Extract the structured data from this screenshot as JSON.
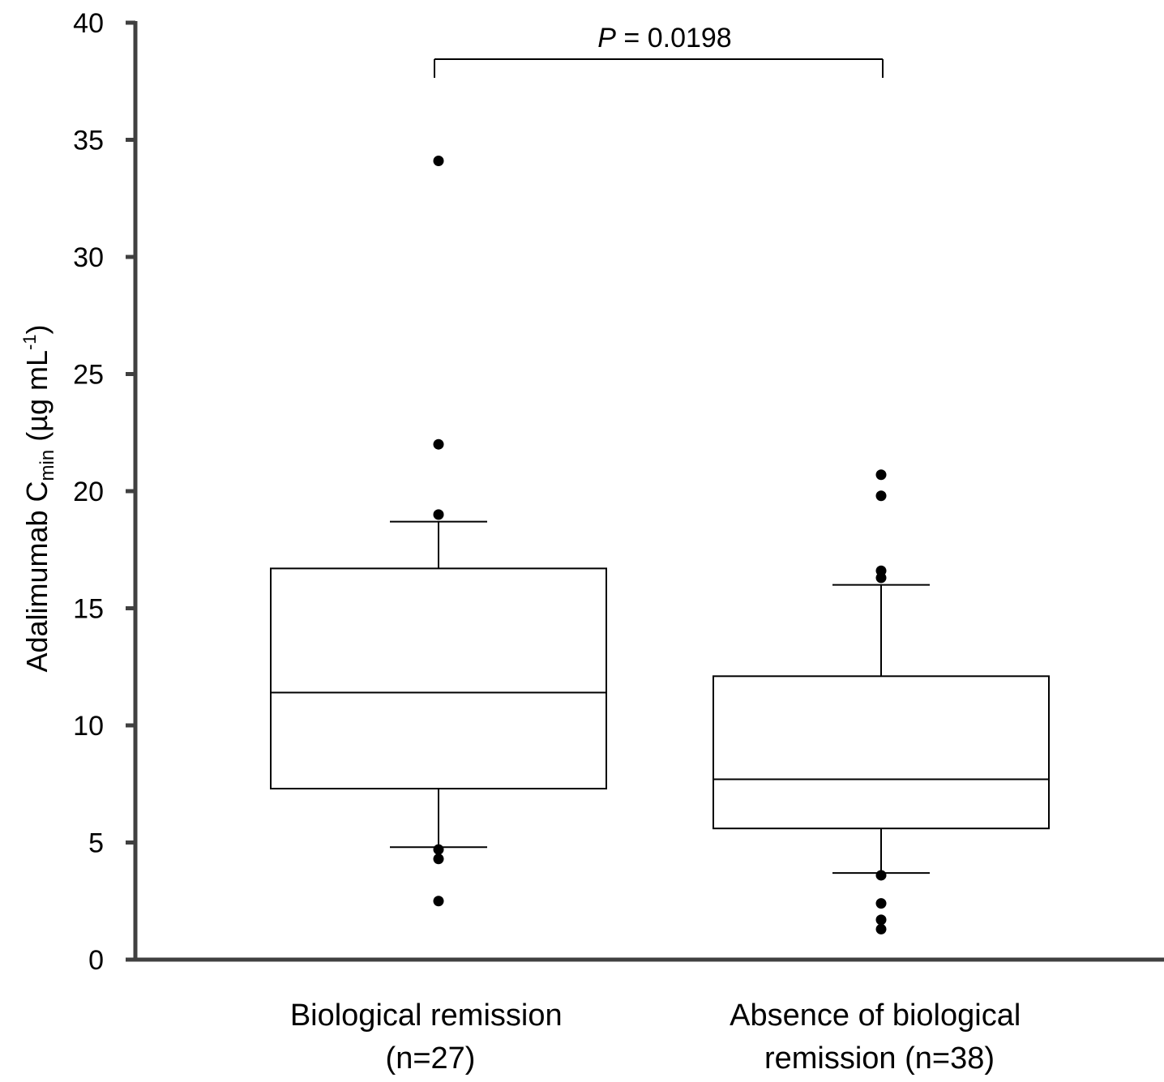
{
  "chart_data": {
    "type": "box",
    "ylim": [
      0,
      40
    ],
    "yticks": [
      0,
      5,
      10,
      15,
      20,
      25,
      30,
      35,
      40
    ],
    "y_axis_title": {
      "main": "Adalimumab C",
      "sub": "min",
      "units": " (µg mL",
      "sup": "-1",
      "close": ")"
    },
    "grid": false,
    "groups": [
      {
        "label_lines": [
          "Biological remission",
          "(n=27)"
        ],
        "whisker_low": 4.8,
        "q1": 7.3,
        "median": 11.4,
        "q3": 16.7,
        "whisker_high": 18.7,
        "outliers": [
          34.1,
          22.0,
          19.0,
          4.7,
          4.3,
          2.5
        ]
      },
      {
        "label_lines": [
          "Absence of biological",
          "remission (n=38)"
        ],
        "whisker_low": 3.7,
        "q1": 5.6,
        "median": 7.7,
        "q3": 12.1,
        "whisker_high": 16.0,
        "outliers": [
          20.7,
          19.8,
          16.6,
          16.3,
          3.6,
          2.4,
          1.7,
          1.3
        ]
      }
    ],
    "significance": {
      "p_symbol": "P",
      "p_rest": " = 0.0198"
    }
  }
}
